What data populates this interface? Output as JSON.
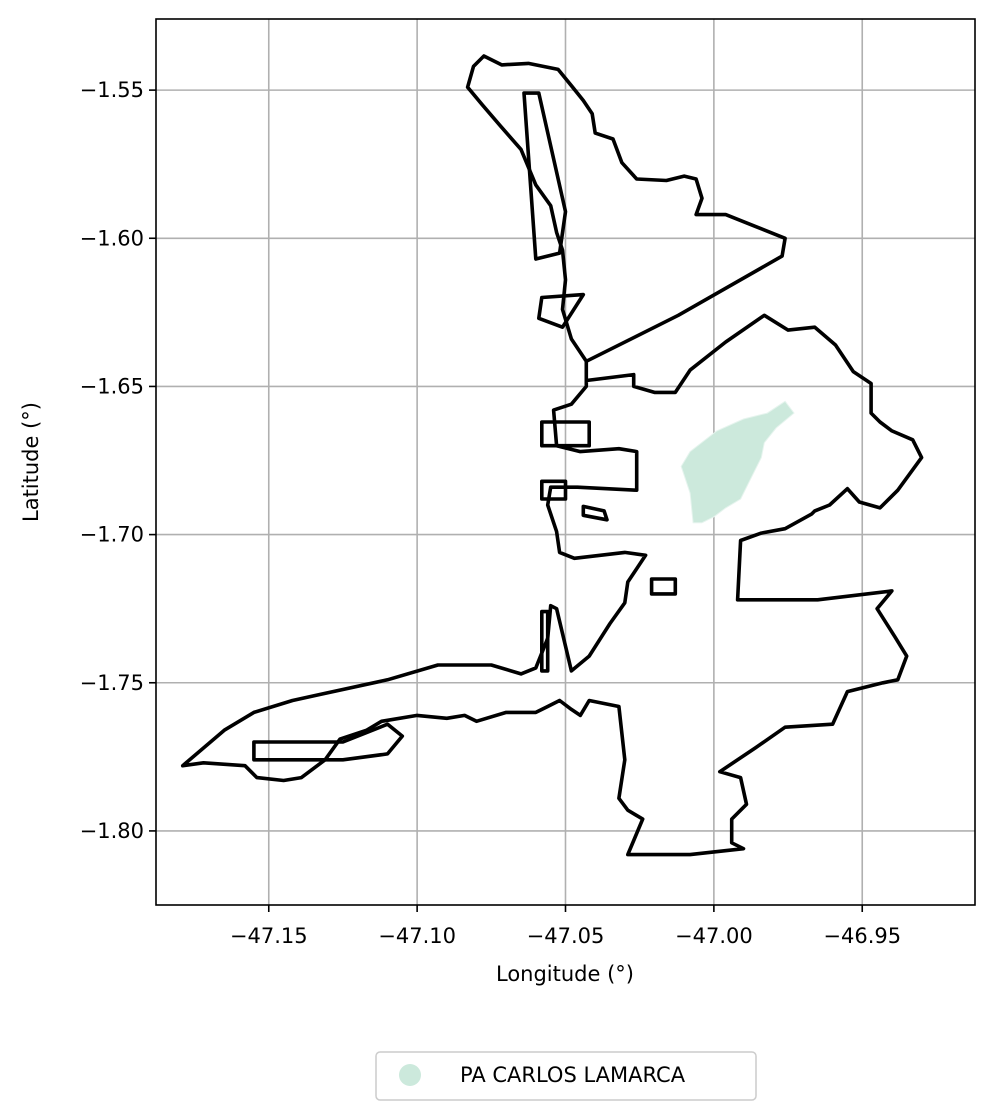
{
  "chart_data": {
    "type": "map",
    "xlabel": "Longitude (°)",
    "ylabel": "Latitude (°)",
    "xlim": [
      -47.188,
      -46.912
    ],
    "ylim": [
      -1.825,
      -1.526
    ],
    "x_ticks": [
      -47.15,
      -47.1,
      -47.05,
      -47.0,
      -46.95
    ],
    "x_tick_labels": [
      "−47.15",
      "−47.10",
      "−47.05",
      "−47.00",
      "−46.95"
    ],
    "y_ticks": [
      -1.55,
      -1.6,
      -1.65,
      -1.7,
      -1.75,
      -1.8
    ],
    "y_tick_labels": [
      "−1.55",
      "−1.60",
      "−1.65",
      "−1.70",
      "−1.75",
      "−1.80"
    ],
    "grid": true,
    "legend_position": "bottom-center",
    "legend": [
      {
        "label": "PA CARLOS LAMARCA",
        "color": "#cce9dc"
      }
    ],
    "boundary_color": "#000000",
    "boundary_polygons": [
      {
        "name": "main-boundary",
        "coords": [
          [
            -47.0775,
            -1.5385
          ],
          [
            -47.0715,
            -1.5415
          ],
          [
            -47.0625,
            -1.541
          ],
          [
            -47.0525,
            -1.543
          ],
          [
            -47.048,
            -1.5485
          ],
          [
            -47.044,
            -1.5535
          ],
          [
            -47.041,
            -1.558
          ],
          [
            -47.04,
            -1.5645
          ],
          [
            -47.034,
            -1.5665
          ],
          [
            -47.031,
            -1.5745
          ],
          [
            -47.026,
            -1.58
          ],
          [
            -47.016,
            -1.5805
          ],
          [
            -47.01,
            -1.579
          ],
          [
            -47.006,
            -1.58
          ],
          [
            -47.004,
            -1.5865
          ],
          [
            -47.006,
            -1.592
          ],
          [
            -46.996,
            -1.592
          ],
          [
            -46.986,
            -1.596
          ],
          [
            -46.976,
            -1.6
          ],
          [
            -46.977,
            -1.606
          ],
          [
            -47.012,
            -1.626
          ],
          [
            -47.043,
            -1.6415
          ],
          [
            -47.043,
            -1.648
          ],
          [
            -47.027,
            -1.646
          ],
          [
            -47.027,
            -1.65
          ],
          [
            -47.02,
            -1.652
          ],
          [
            -47.013,
            -1.652
          ],
          [
            -47.008,
            -1.6445
          ],
          [
            -46.996,
            -1.635
          ],
          [
            -46.983,
            -1.626
          ],
          [
            -46.975,
            -1.631
          ],
          [
            -46.966,
            -1.63
          ],
          [
            -46.959,
            -1.636
          ],
          [
            -46.953,
            -1.645
          ],
          [
            -46.947,
            -1.649
          ],
          [
            -46.947,
            -1.659
          ],
          [
            -46.944,
            -1.662
          ],
          [
            -46.94,
            -1.665
          ],
          [
            -46.933,
            -1.668
          ],
          [
            -46.93,
            -1.674
          ],
          [
            -46.938,
            -1.685
          ],
          [
            -46.944,
            -1.691
          ],
          [
            -46.951,
            -1.689
          ],
          [
            -46.955,
            -1.6845
          ],
          [
            -46.961,
            -1.69
          ],
          [
            -46.966,
            -1.692
          ],
          [
            -46.967,
            -1.693
          ],
          [
            -46.976,
            -1.698
          ],
          [
            -46.984,
            -1.6995
          ],
          [
            -46.991,
            -1.702
          ],
          [
            -46.992,
            -1.722
          ],
          [
            -46.965,
            -1.722
          ],
          [
            -46.94,
            -1.719
          ],
          [
            -46.945,
            -1.725
          ],
          [
            -46.939,
            -1.7345
          ],
          [
            -46.935,
            -1.741
          ],
          [
            -46.938,
            -1.749
          ],
          [
            -46.943,
            -1.75
          ],
          [
            -46.955,
            -1.753
          ],
          [
            -46.96,
            -1.764
          ],
          [
            -46.976,
            -1.765
          ],
          [
            -46.986,
            -1.772
          ],
          [
            -46.998,
            -1.78
          ],
          [
            -46.991,
            -1.782
          ],
          [
            -46.989,
            -1.791
          ],
          [
            -46.994,
            -1.796
          ],
          [
            -46.994,
            -1.804
          ],
          [
            -46.99,
            -1.806
          ],
          [
            -47.008,
            -1.808
          ],
          [
            -47.029,
            -1.808
          ],
          [
            -47.024,
            -1.796
          ],
          [
            -47.029,
            -1.793
          ],
          [
            -47.032,
            -1.789
          ],
          [
            -47.03,
            -1.776
          ],
          [
            -47.032,
            -1.758
          ],
          [
            -47.042,
            -1.756
          ],
          [
            -47.045,
            -1.761
          ],
          [
            -47.048,
            -1.759
          ],
          [
            -47.052,
            -1.756
          ],
          [
            -47.056,
            -1.758
          ],
          [
            -47.06,
            -1.76
          ],
          [
            -47.07,
            -1.76
          ],
          [
            -47.08,
            -1.763
          ],
          [
            -47.084,
            -1.761
          ],
          [
            -47.09,
            -1.762
          ],
          [
            -47.1,
            -1.761
          ],
          [
            -47.112,
            -1.763
          ],
          [
            -47.117,
            -1.766
          ],
          [
            -47.126,
            -1.769
          ],
          [
            -47.131,
            -1.776
          ],
          [
            -47.139,
            -1.782
          ],
          [
            -47.145,
            -1.783
          ],
          [
            -47.154,
            -1.782
          ],
          [
            -47.158,
            -1.778
          ],
          [
            -47.172,
            -1.777
          ],
          [
            -47.179,
            -1.778
          ],
          [
            -47.165,
            -1.766
          ],
          [
            -47.155,
            -1.76
          ],
          [
            -47.142,
            -1.756
          ],
          [
            -47.133,
            -1.754
          ],
          [
            -47.11,
            -1.749
          ],
          [
            -47.093,
            -1.744
          ],
          [
            -47.085,
            -1.744
          ],
          [
            -47.075,
            -1.744
          ],
          [
            -47.065,
            -1.747
          ],
          [
            -47.06,
            -1.745
          ],
          [
            -47.056,
            -1.735
          ],
          [
            -47.055,
            -1.724
          ],
          [
            -47.053,
            -1.725
          ],
          [
            -47.048,
            -1.746
          ],
          [
            -47.042,
            -1.741
          ],
          [
            -47.035,
            -1.73
          ],
          [
            -47.03,
            -1.723
          ],
          [
            -47.029,
            -1.716
          ],
          [
            -47.023,
            -1.707
          ],
          [
            -47.03,
            -1.706
          ],
          [
            -47.047,
            -1.708
          ],
          [
            -47.052,
            -1.706
          ],
          [
            -47.053,
            -1.699
          ],
          [
            -47.056,
            -1.69
          ],
          [
            -47.055,
            -1.684
          ],
          [
            -47.046,
            -1.684
          ],
          [
            -47.026,
            -1.685
          ],
          [
            -47.026,
            -1.672
          ],
          [
            -47.032,
            -1.671
          ],
          [
            -47.045,
            -1.672
          ],
          [
            -47.053,
            -1.67
          ],
          [
            -47.054,
            -1.658
          ],
          [
            -47.048,
            -1.656
          ],
          [
            -47.043,
            -1.65
          ],
          [
            -47.043,
            -1.6415
          ],
          [
            -47.048,
            -1.634
          ],
          [
            -47.051,
            -1.624
          ],
          [
            -47.05,
            -1.614
          ],
          [
            -47.051,
            -1.604
          ],
          [
            -47.053,
            -1.598
          ],
          [
            -47.055,
            -1.589
          ],
          [
            -47.06,
            -1.582
          ],
          [
            -47.065,
            -1.57
          ],
          [
            -47.072,
            -1.562
          ],
          [
            -47.078,
            -1.555
          ],
          [
            -47.083,
            -1.549
          ],
          [
            -47.081,
            -1.542
          ],
          [
            -47.0775,
            -1.5385
          ]
        ]
      },
      {
        "name": "northern-finger",
        "coords": [
          [
            -47.064,
            -1.551
          ],
          [
            -47.059,
            -1.551
          ],
          [
            -47.05,
            -1.591
          ],
          [
            -47.052,
            -1.605
          ],
          [
            -47.06,
            -1.607
          ],
          [
            -47.064,
            -1.551
          ]
        ]
      },
      {
        "name": "west-inlet",
        "coords": [
          [
            -47.044,
            -1.619
          ],
          [
            -47.058,
            -1.62
          ],
          [
            -47.059,
            -1.627
          ],
          [
            -47.051,
            -1.63
          ],
          [
            -47.044,
            -1.619
          ]
        ]
      },
      {
        "name": "center-block-a",
        "coords": [
          [
            -47.058,
            -1.662
          ],
          [
            -47.042,
            -1.662
          ],
          [
            -47.042,
            -1.67
          ],
          [
            -47.058,
            -1.67
          ],
          [
            -47.058,
            -1.662
          ]
        ]
      },
      {
        "name": "center-block-b",
        "coords": [
          [
            -47.058,
            -1.682
          ],
          [
            -47.05,
            -1.682
          ],
          [
            -47.05,
            -1.688
          ],
          [
            -47.058,
            -1.688
          ],
          [
            -47.058,
            -1.682
          ]
        ]
      },
      {
        "name": "small-rectangle",
        "coords": [
          [
            -47.021,
            -1.715
          ],
          [
            -47.013,
            -1.715
          ],
          [
            -47.013,
            -1.72
          ],
          [
            -47.021,
            -1.72
          ],
          [
            -47.021,
            -1.715
          ]
        ]
      },
      {
        "name": "center-islet",
        "coords": [
          [
            -47.044,
            -1.6905
          ],
          [
            -47.037,
            -1.692
          ],
          [
            -47.036,
            -1.695
          ],
          [
            -47.044,
            -1.6935
          ],
          [
            -47.044,
            -1.6905
          ]
        ]
      },
      {
        "name": "south-channel",
        "coords": [
          [
            -47.058,
            -1.726
          ],
          [
            -47.056,
            -1.726
          ],
          [
            -47.056,
            -1.746
          ],
          [
            -47.058,
            -1.746
          ],
          [
            -47.058,
            -1.726
          ]
        ]
      },
      {
        "name": "southwest-arm",
        "coords": [
          [
            -47.155,
            -1.77
          ],
          [
            -47.125,
            -1.77
          ],
          [
            -47.11,
            -1.764
          ],
          [
            -47.105,
            -1.768
          ],
          [
            -47.11,
            -1.774
          ],
          [
            -47.125,
            -1.776
          ],
          [
            -47.155,
            -1.776
          ],
          [
            -47.155,
            -1.77
          ]
        ]
      }
    ],
    "settlement_polygon": {
      "name": "PA CARLOS LAMARCA",
      "coords": [
        [
          -46.976,
          -1.655
        ],
        [
          -46.973,
          -1.659
        ],
        [
          -46.979,
          -1.664
        ],
        [
          -46.983,
          -1.669
        ],
        [
          -46.984,
          -1.674
        ],
        [
          -46.987,
          -1.68
        ],
        [
          -46.991,
          -1.688
        ],
        [
          -46.996,
          -1.691
        ],
        [
          -47.0,
          -1.694
        ],
        [
          -47.004,
          -1.696
        ],
        [
          -47.007,
          -1.696
        ],
        [
          -47.008,
          -1.686
        ],
        [
          -47.011,
          -1.677
        ],
        [
          -47.008,
          -1.672
        ],
        [
          -46.999,
          -1.665
        ],
        [
          -46.99,
          -1.661
        ],
        [
          -46.982,
          -1.659
        ],
        [
          -46.976,
          -1.655
        ]
      ]
    }
  }
}
